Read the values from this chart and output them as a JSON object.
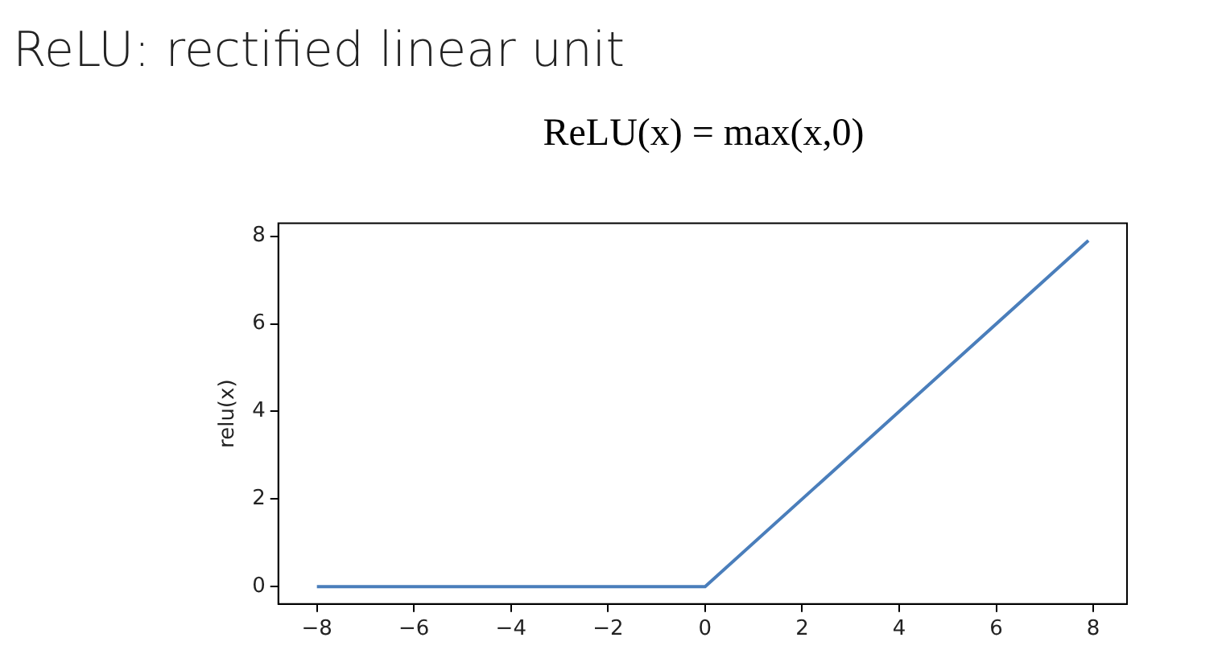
{
  "chart_data": {
    "type": "line",
    "title": "ReLU: rectified linear unit",
    "subtitle": "ReLU(x) = max(x,0)",
    "ylabel": "relu(x)",
    "x": [
      -8,
      0,
      7.9
    ],
    "series": [
      {
        "color": "#4a7ebb",
        "values": [
          0,
          0,
          7.9
        ]
      }
    ],
    "xlim": [
      -8.795,
      8.695
    ],
    "xticks": [
      {
        "value": -8,
        "label": "−8"
      },
      {
        "value": -6,
        "label": "−6"
      },
      {
        "value": -4,
        "label": "−4"
      },
      {
        "value": -2,
        "label": "−2"
      },
      0,
      2,
      4,
      6,
      8
    ],
    "ylim": [
      -0.395,
      8.295
    ],
    "yticks": [
      0,
      2,
      4,
      6,
      8
    ],
    "grid": false,
    "legend": false,
    "marker": "none",
    "line_style": "solid"
  }
}
